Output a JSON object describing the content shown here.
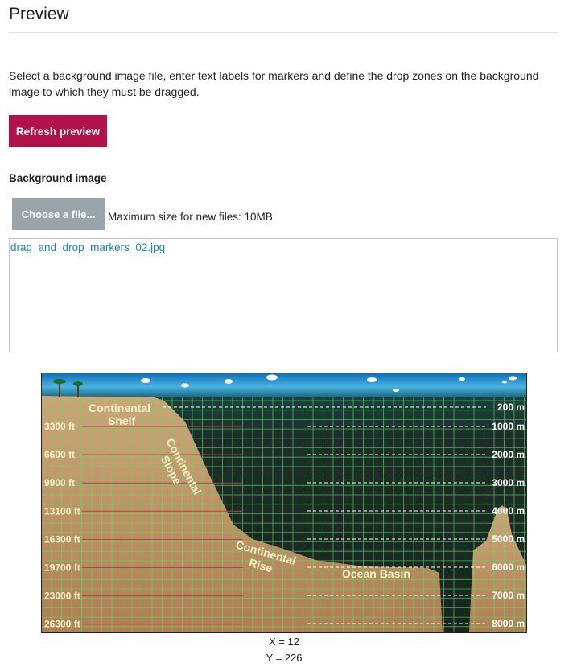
{
  "page": {
    "title": "Preview",
    "description": "Select a background image file, enter text labels for markers and define the drop zones on the background image to which they must be dragged.",
    "refresh_button": "Refresh preview"
  },
  "background": {
    "label": "Background image",
    "choose_button": "Choose a file...",
    "max_size": "Maximum size for new files: 10MB",
    "file_name": "drag_and_drop_markers_02.jpg"
  },
  "image": {
    "feet_labels": [
      "3300 ft",
      "6600 ft",
      "9900 ft",
      "13100 ft",
      "16300 ft",
      "19700 ft",
      "23000 ft",
      "26300 ft"
    ],
    "meter_labels": [
      "200 m",
      "1000 m",
      "2000 m",
      "3000 m",
      "4000 m",
      "5000 m",
      "6000 m",
      "7000 m",
      "8000 m"
    ],
    "regions": {
      "shelf_line1": "Continental",
      "shelf_line2": "Shelf",
      "slope_line1": "Continental",
      "slope_line2": "Slope",
      "rise_line1": "Continental",
      "rise_line2": "Rise",
      "basin": "Ocean Basin"
    },
    "colors": {
      "sky": "#3aa6d8",
      "water": "#1c2a26",
      "land": "#c0956a",
      "grid": "#4ee84e",
      "label": "#f5f0c8"
    }
  },
  "coords": {
    "x": "X = 12",
    "y": "Y = 226"
  }
}
